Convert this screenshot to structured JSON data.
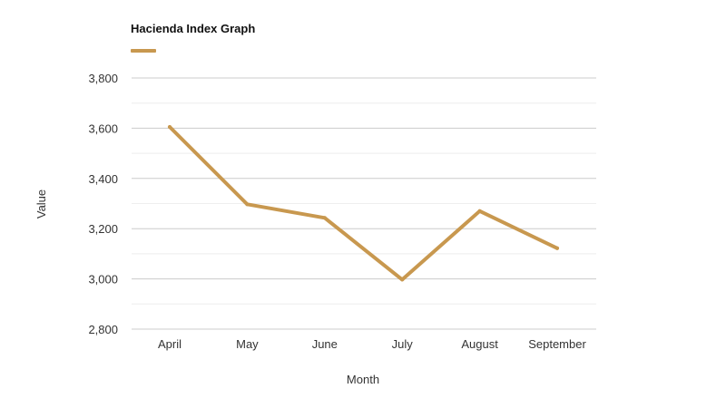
{
  "chart_data": {
    "type": "line",
    "title": "Hacienda Index Graph",
    "xlabel": "Month",
    "ylabel": "Value",
    "categories": [
      "April",
      "May",
      "June",
      "July",
      "August",
      "September"
    ],
    "series": [
      {
        "values": [
          3605,
          3297,
          3243,
          2997,
          3270,
          3122
        ]
      }
    ],
    "ylim": [
      2800,
      3800
    ],
    "yticks": [
      2800,
      3000,
      3200,
      3400,
      3600,
      3800
    ],
    "ytick_labels": [
      "2,800",
      "3,000",
      "3,200",
      "3,400",
      "3,600",
      "3,800"
    ],
    "grid": true,
    "minor_grid": true,
    "legend": "top-left",
    "colors": {
      "line": "#c8984f",
      "grid_major": "#cccccc",
      "grid_minor": "#eeeeee"
    }
  }
}
